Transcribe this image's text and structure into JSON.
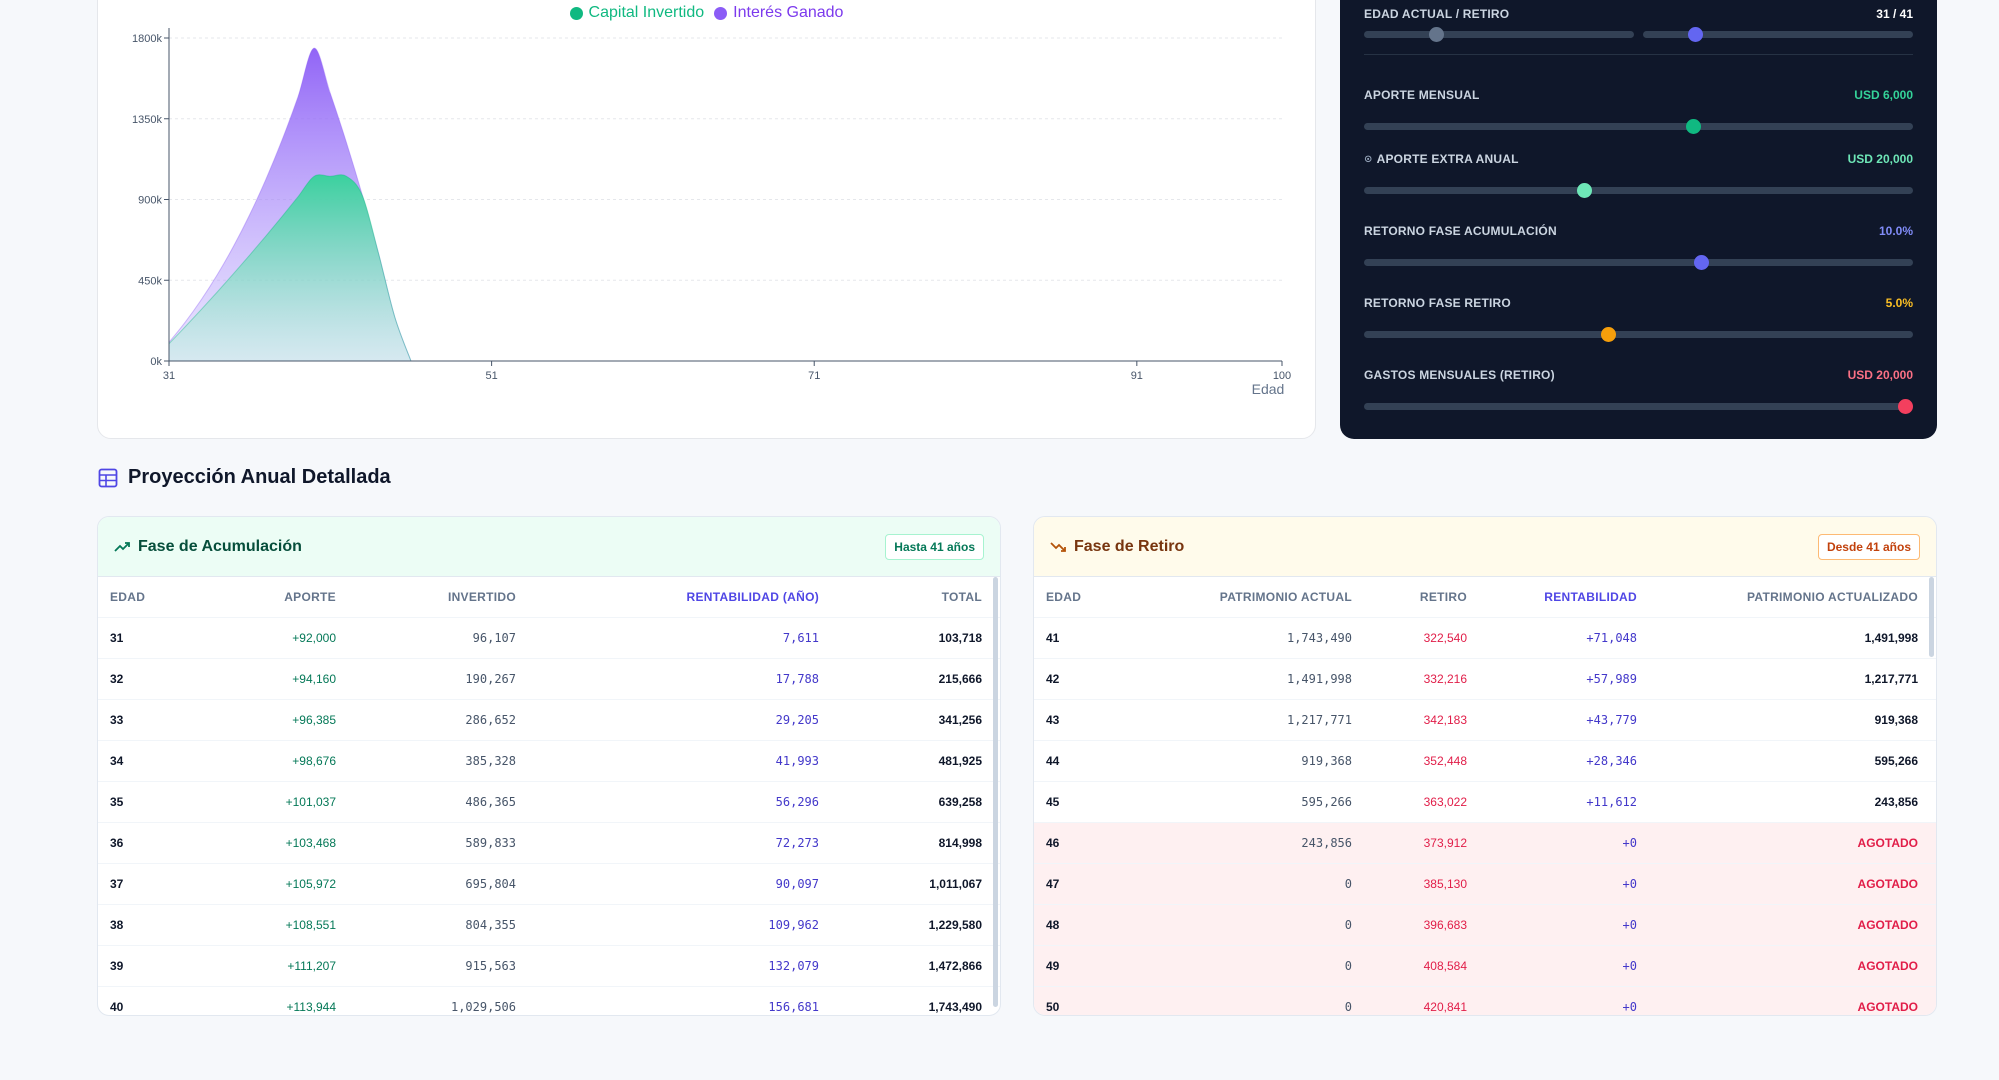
{
  "chart": {
    "legend": [
      {
        "label": "Capital Invertido",
        "color": "#10b981"
      },
      {
        "label": "Interés Ganado",
        "color": "#8b5cf6"
      }
    ],
    "y_ticks": [
      "1800k",
      "1350k",
      "900k",
      "450k",
      "0k"
    ],
    "x_ticks": [
      "31",
      "51",
      "71",
      "91",
      "100"
    ],
    "x_label": "Edad"
  },
  "chart_data": {
    "type": "area",
    "xlabel": "Edad",
    "ylabel": "",
    "xlim": [
      31,
      100
    ],
    "ylim": [
      0,
      1800000
    ],
    "series": [
      {
        "name": "Capital Invertido",
        "color": "#10b981",
        "points": [
          [
            31,
            96107
          ],
          [
            32,
            190267
          ],
          [
            33,
            286652
          ],
          [
            34,
            385328
          ],
          [
            35,
            486365
          ],
          [
            36,
            589833
          ],
          [
            37,
            695804
          ],
          [
            38,
            804355
          ],
          [
            39,
            915563
          ],
          [
            40,
            1029506
          ],
          [
            41,
            1029506
          ],
          [
            42,
            1029506
          ],
          [
            43,
            919368
          ],
          [
            44,
            595266
          ],
          [
            45,
            243856
          ],
          [
            46,
            0
          ]
        ]
      },
      {
        "name": "Interés Ganado",
        "color": "#8b5cf6",
        "points": [
          [
            31,
            103718
          ],
          [
            32,
            215666
          ],
          [
            33,
            341256
          ],
          [
            34,
            481925
          ],
          [
            35,
            639258
          ],
          [
            36,
            814998
          ],
          [
            37,
            1011067
          ],
          [
            38,
            1229580
          ],
          [
            39,
            1472866
          ],
          [
            40,
            1743490
          ],
          [
            41,
            1491998
          ],
          [
            42,
            1217771
          ],
          [
            43,
            919368
          ],
          [
            44,
            595266
          ],
          [
            45,
            243856
          ],
          [
            46,
            0
          ]
        ]
      }
    ]
  },
  "controls": {
    "age": {
      "label": "EDAD ACTUAL / RETIRO",
      "value": "31 / 41"
    },
    "monthly": {
      "label": "APORTE MENSUAL",
      "value": "USD 6,000",
      "color": "#34d399",
      "fraction": 0.6
    },
    "extra": {
      "label": "APORTE EXTRA ANUAL",
      "value": "USD 20,000",
      "color": "#6ee7b7",
      "fraction": 0.4
    },
    "acc_return": {
      "label": "RETORNO FASE ACUMULACIÓN",
      "value": "10.0%",
      "color": "#818cf8",
      "fraction": 0.613
    },
    "ret_return": {
      "label": "RETORNO FASE RETIRO",
      "value": "5.0%",
      "color": "#f59e0b",
      "fraction": 0.445
    },
    "expenses": {
      "label": "GASTOS MENSUALES (RETIRO)",
      "value": "USD 20,000",
      "color": "#f43f5e",
      "fraction": 1.0
    }
  },
  "section_title": "Proyección Anual Detallada",
  "accumulation": {
    "title": "Fase de Acumulación",
    "badge": "Hasta 41 años",
    "headers": [
      "EDAD",
      "APORTE",
      "INVERTIDO",
      "RENTABILIDAD (AÑO)",
      "TOTAL"
    ],
    "rows": [
      [
        "31",
        "+92,000",
        "96,107",
        "7,611",
        "103,718"
      ],
      [
        "32",
        "+94,160",
        "190,267",
        "17,788",
        "215,666"
      ],
      [
        "33",
        "+96,385",
        "286,652",
        "29,205",
        "341,256"
      ],
      [
        "34",
        "+98,676",
        "385,328",
        "41,993",
        "481,925"
      ],
      [
        "35",
        "+101,037",
        "486,365",
        "56,296",
        "639,258"
      ],
      [
        "36",
        "+103,468",
        "589,833",
        "72,273",
        "814,998"
      ],
      [
        "37",
        "+105,972",
        "695,804",
        "90,097",
        "1,011,067"
      ],
      [
        "38",
        "+108,551",
        "804,355",
        "109,962",
        "1,229,580"
      ],
      [
        "39",
        "+111,207",
        "915,563",
        "132,079",
        "1,472,866"
      ],
      [
        "40",
        "+113,944",
        "1,029,506",
        "156,681",
        "1,743,490"
      ]
    ]
  },
  "retirement": {
    "title": "Fase de Retiro",
    "badge": "Desde 41 años",
    "headers": [
      "EDAD",
      "PATRIMONIO ACTUAL",
      "RETIRO",
      "RENTABILIDAD",
      "PATRIMONIO ACTUALIZADO"
    ],
    "rows": [
      [
        "41",
        "1,743,490",
        "322,540",
        "+71,048",
        "1,491,998"
      ],
      [
        "42",
        "1,491,998",
        "332,216",
        "+57,989",
        "1,217,771"
      ],
      [
        "43",
        "1,217,771",
        "342,183",
        "+43,779",
        "919,368"
      ],
      [
        "44",
        "919,368",
        "352,448",
        "+28,346",
        "595,266"
      ],
      [
        "45",
        "595,266",
        "363,022",
        "+11,612",
        "243,856"
      ],
      [
        "46",
        "243,856",
        "373,912",
        "+0",
        "AGOTADO"
      ],
      [
        "47",
        "0",
        "385,130",
        "+0",
        "AGOTADO"
      ],
      [
        "48",
        "0",
        "396,683",
        "+0",
        "AGOTADO"
      ],
      [
        "49",
        "0",
        "408,584",
        "+0",
        "AGOTADO"
      ],
      [
        "50",
        "0",
        "420,841",
        "+0",
        "AGOTADO"
      ]
    ]
  }
}
